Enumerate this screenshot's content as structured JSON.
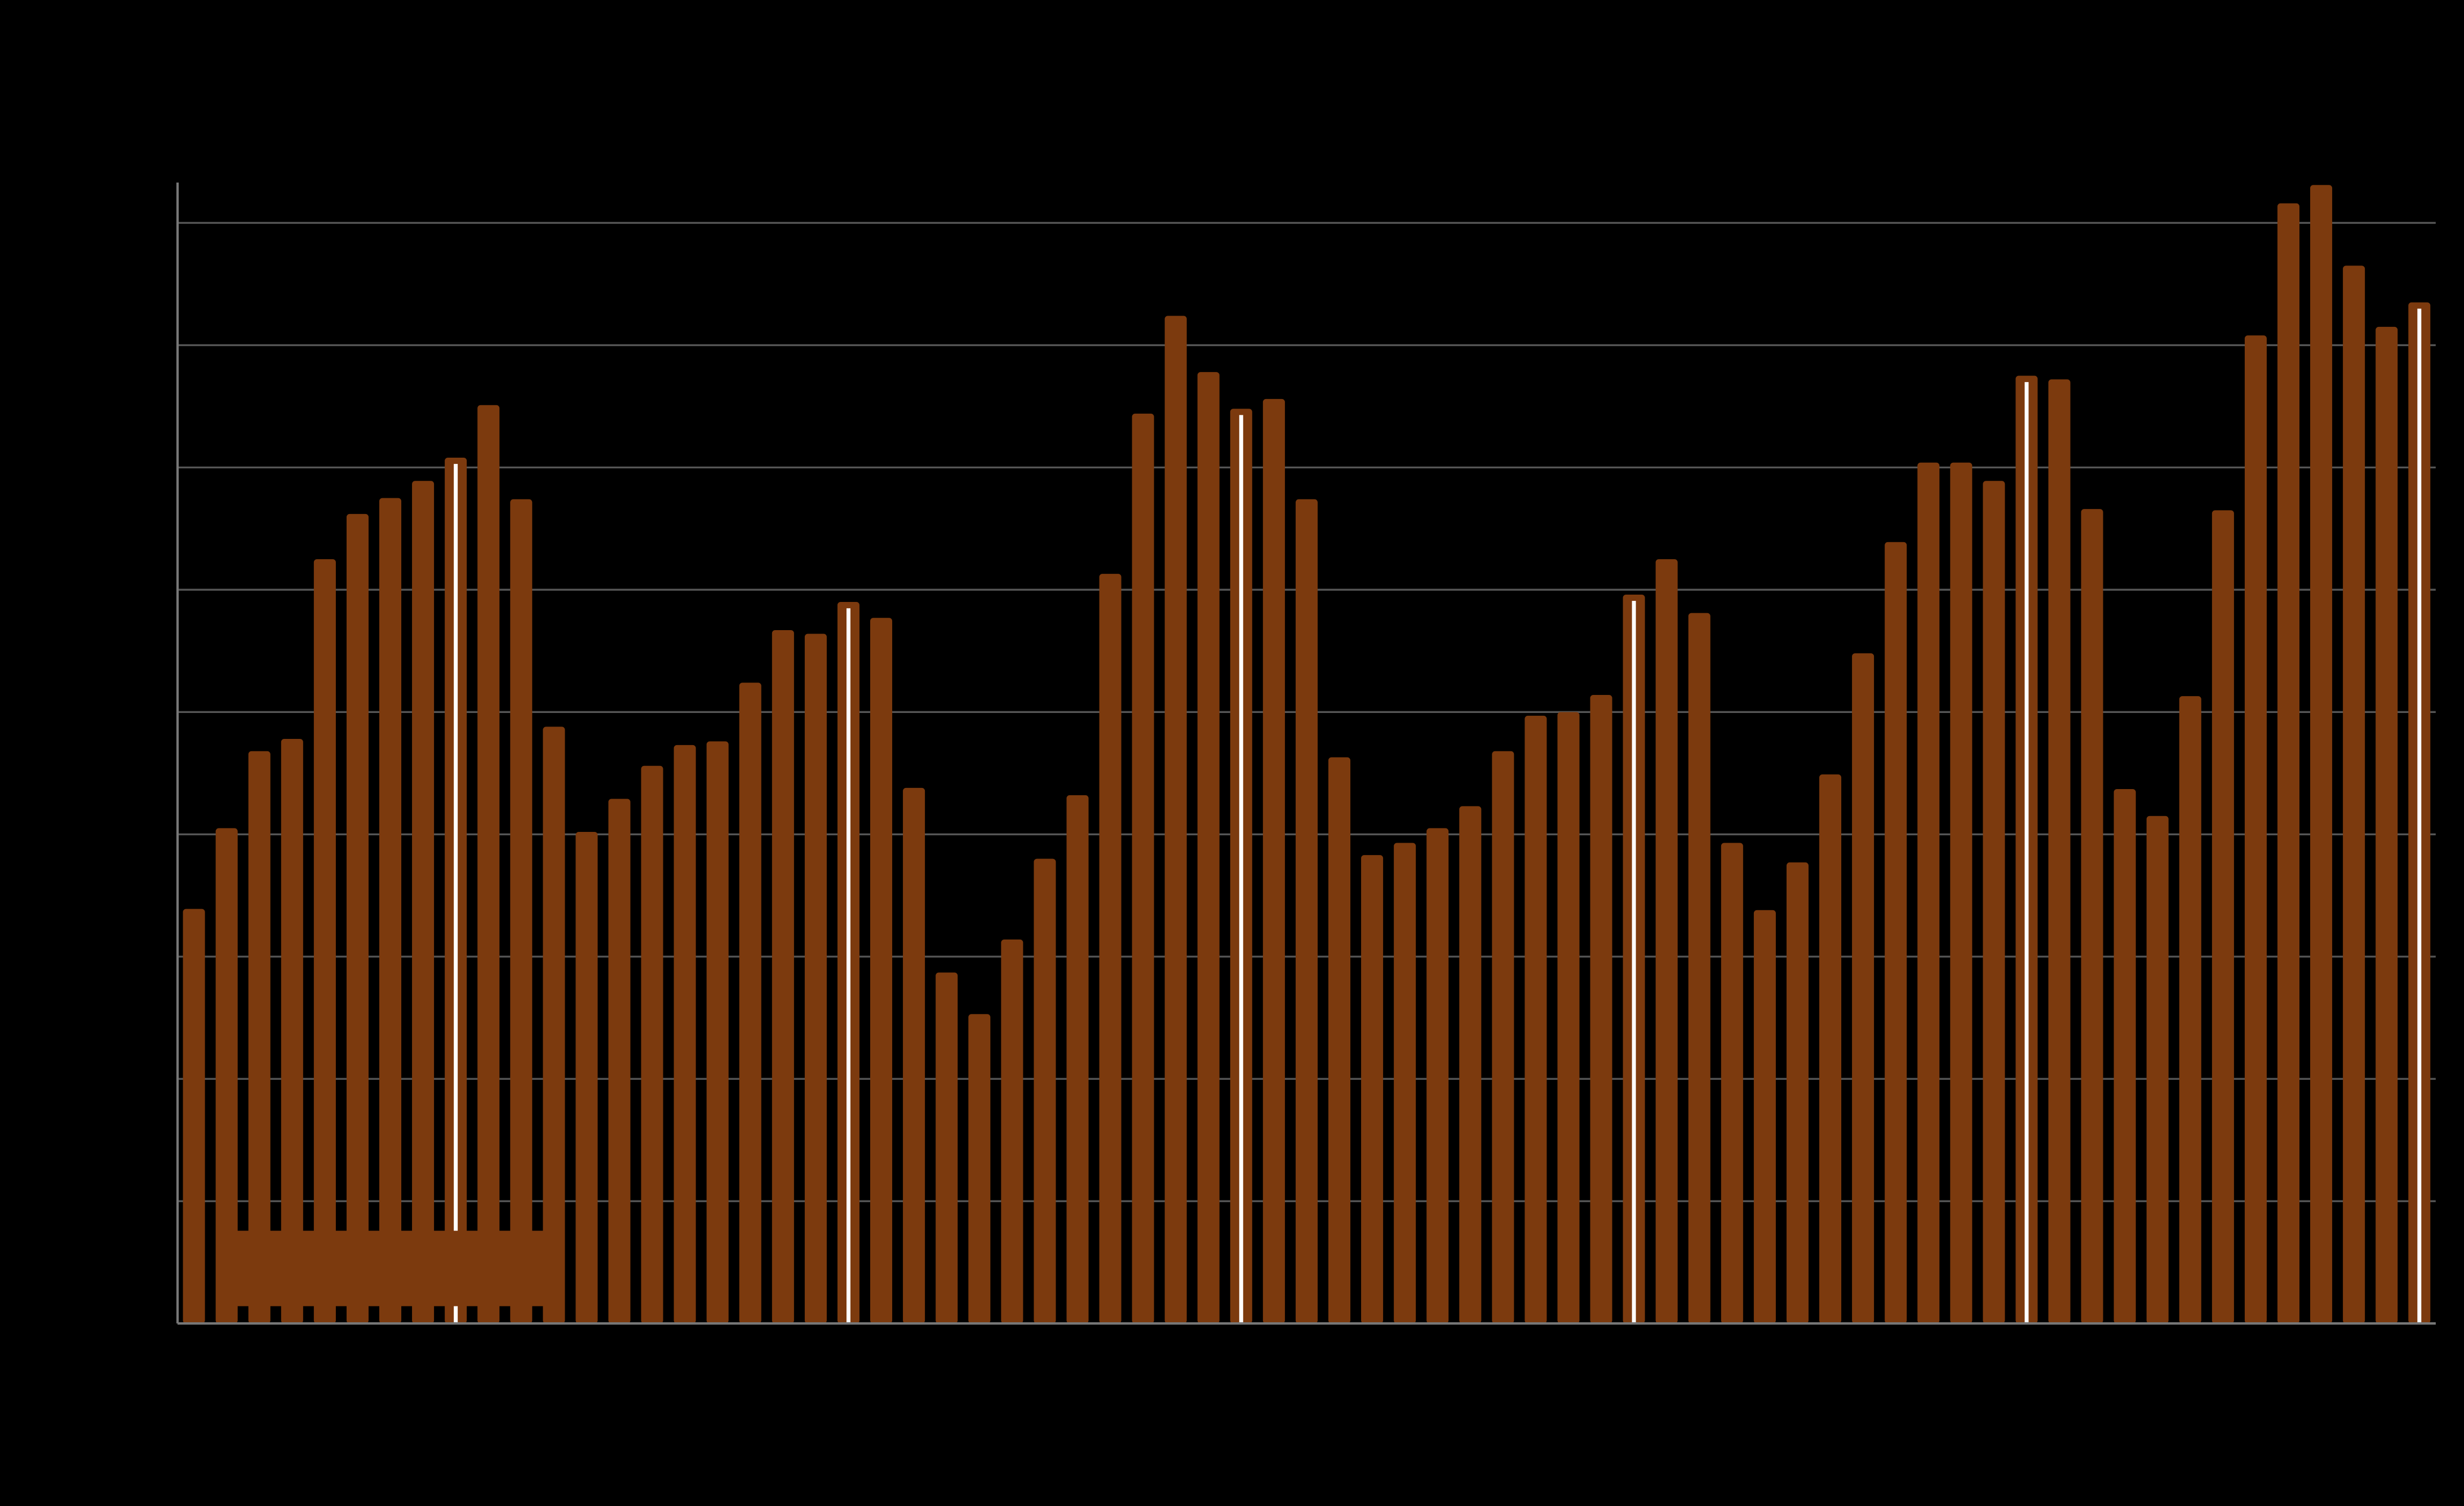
{
  "chart_data": {
    "type": "bar",
    "categories": [
      null,
      null,
      null,
      null,
      null,
      null,
      null,
      null,
      null,
      null,
      null,
      null,
      null,
      null,
      null,
      null,
      null,
      null,
      null,
      null,
      null,
      null,
      null,
      null,
      null,
      null,
      null,
      null,
      null,
      null,
      null,
      null,
      null,
      null,
      null,
      null,
      null,
      null,
      null,
      null,
      null,
      null,
      null,
      null,
      null,
      null,
      null,
      null,
      null,
      null,
      null,
      null,
      null,
      null,
      null,
      null,
      null,
      null,
      null,
      null,
      null,
      null,
      null,
      null,
      null,
      null,
      null,
      null,
      null
    ],
    "values": [
      33.9,
      40.5,
      46.8,
      47.8,
      62.5,
      66.2,
      67.5,
      68.9,
      70.8,
      75.1,
      67.4,
      48.8,
      40.2,
      42.9,
      45.6,
      47.3,
      47.6,
      52.4,
      56.7,
      56.4,
      59.0,
      57.7,
      43.8,
      28.7,
      25.3,
      31.4,
      38.0,
      43.2,
      61.3,
      74.4,
      82.4,
      77.8,
      74.8,
      75.6,
      67.4,
      46.3,
      38.3,
      39.3,
      40.5,
      42.3,
      46.8,
      49.7,
      50.0,
      51.4,
      59.6,
      62.5,
      58.1,
      39.3,
      33.8,
      37.7,
      44.9,
      54.8,
      63.9,
      70.4,
      70.4,
      68.9,
      77.5,
      77.2,
      66.6,
      43.7,
      41.5,
      51.3,
      66.5,
      80.8,
      91.6,
      93.1,
      86.5,
      81.5,
      83.5
    ],
    "color": "#7c3a0e",
    "highlight_indices": [
      8,
      20,
      32,
      44,
      56,
      68
    ],
    "highlight_color": "#ffffff",
    "ylim": [
      0,
      93.3
    ],
    "yticks": [
      0,
      10,
      20,
      30,
      40,
      50,
      60,
      70,
      80,
      90
    ],
    "grid": true
  }
}
